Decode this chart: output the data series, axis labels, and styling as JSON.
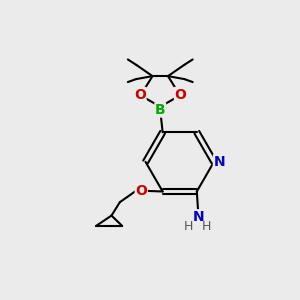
{
  "bg_color": "#ebebeb",
  "atom_colors": {
    "C": "#000000",
    "N": "#0000cc",
    "O": "#cc0000",
    "B": "#00aa00",
    "H": "#555555"
  },
  "bond_color": "#000000",
  "bond_width": 1.5,
  "font_size_atom": 10,
  "figsize": [
    3.0,
    3.0
  ],
  "dpi": 100,
  "xlim": [
    0,
    10
  ],
  "ylim": [
    0,
    10
  ]
}
